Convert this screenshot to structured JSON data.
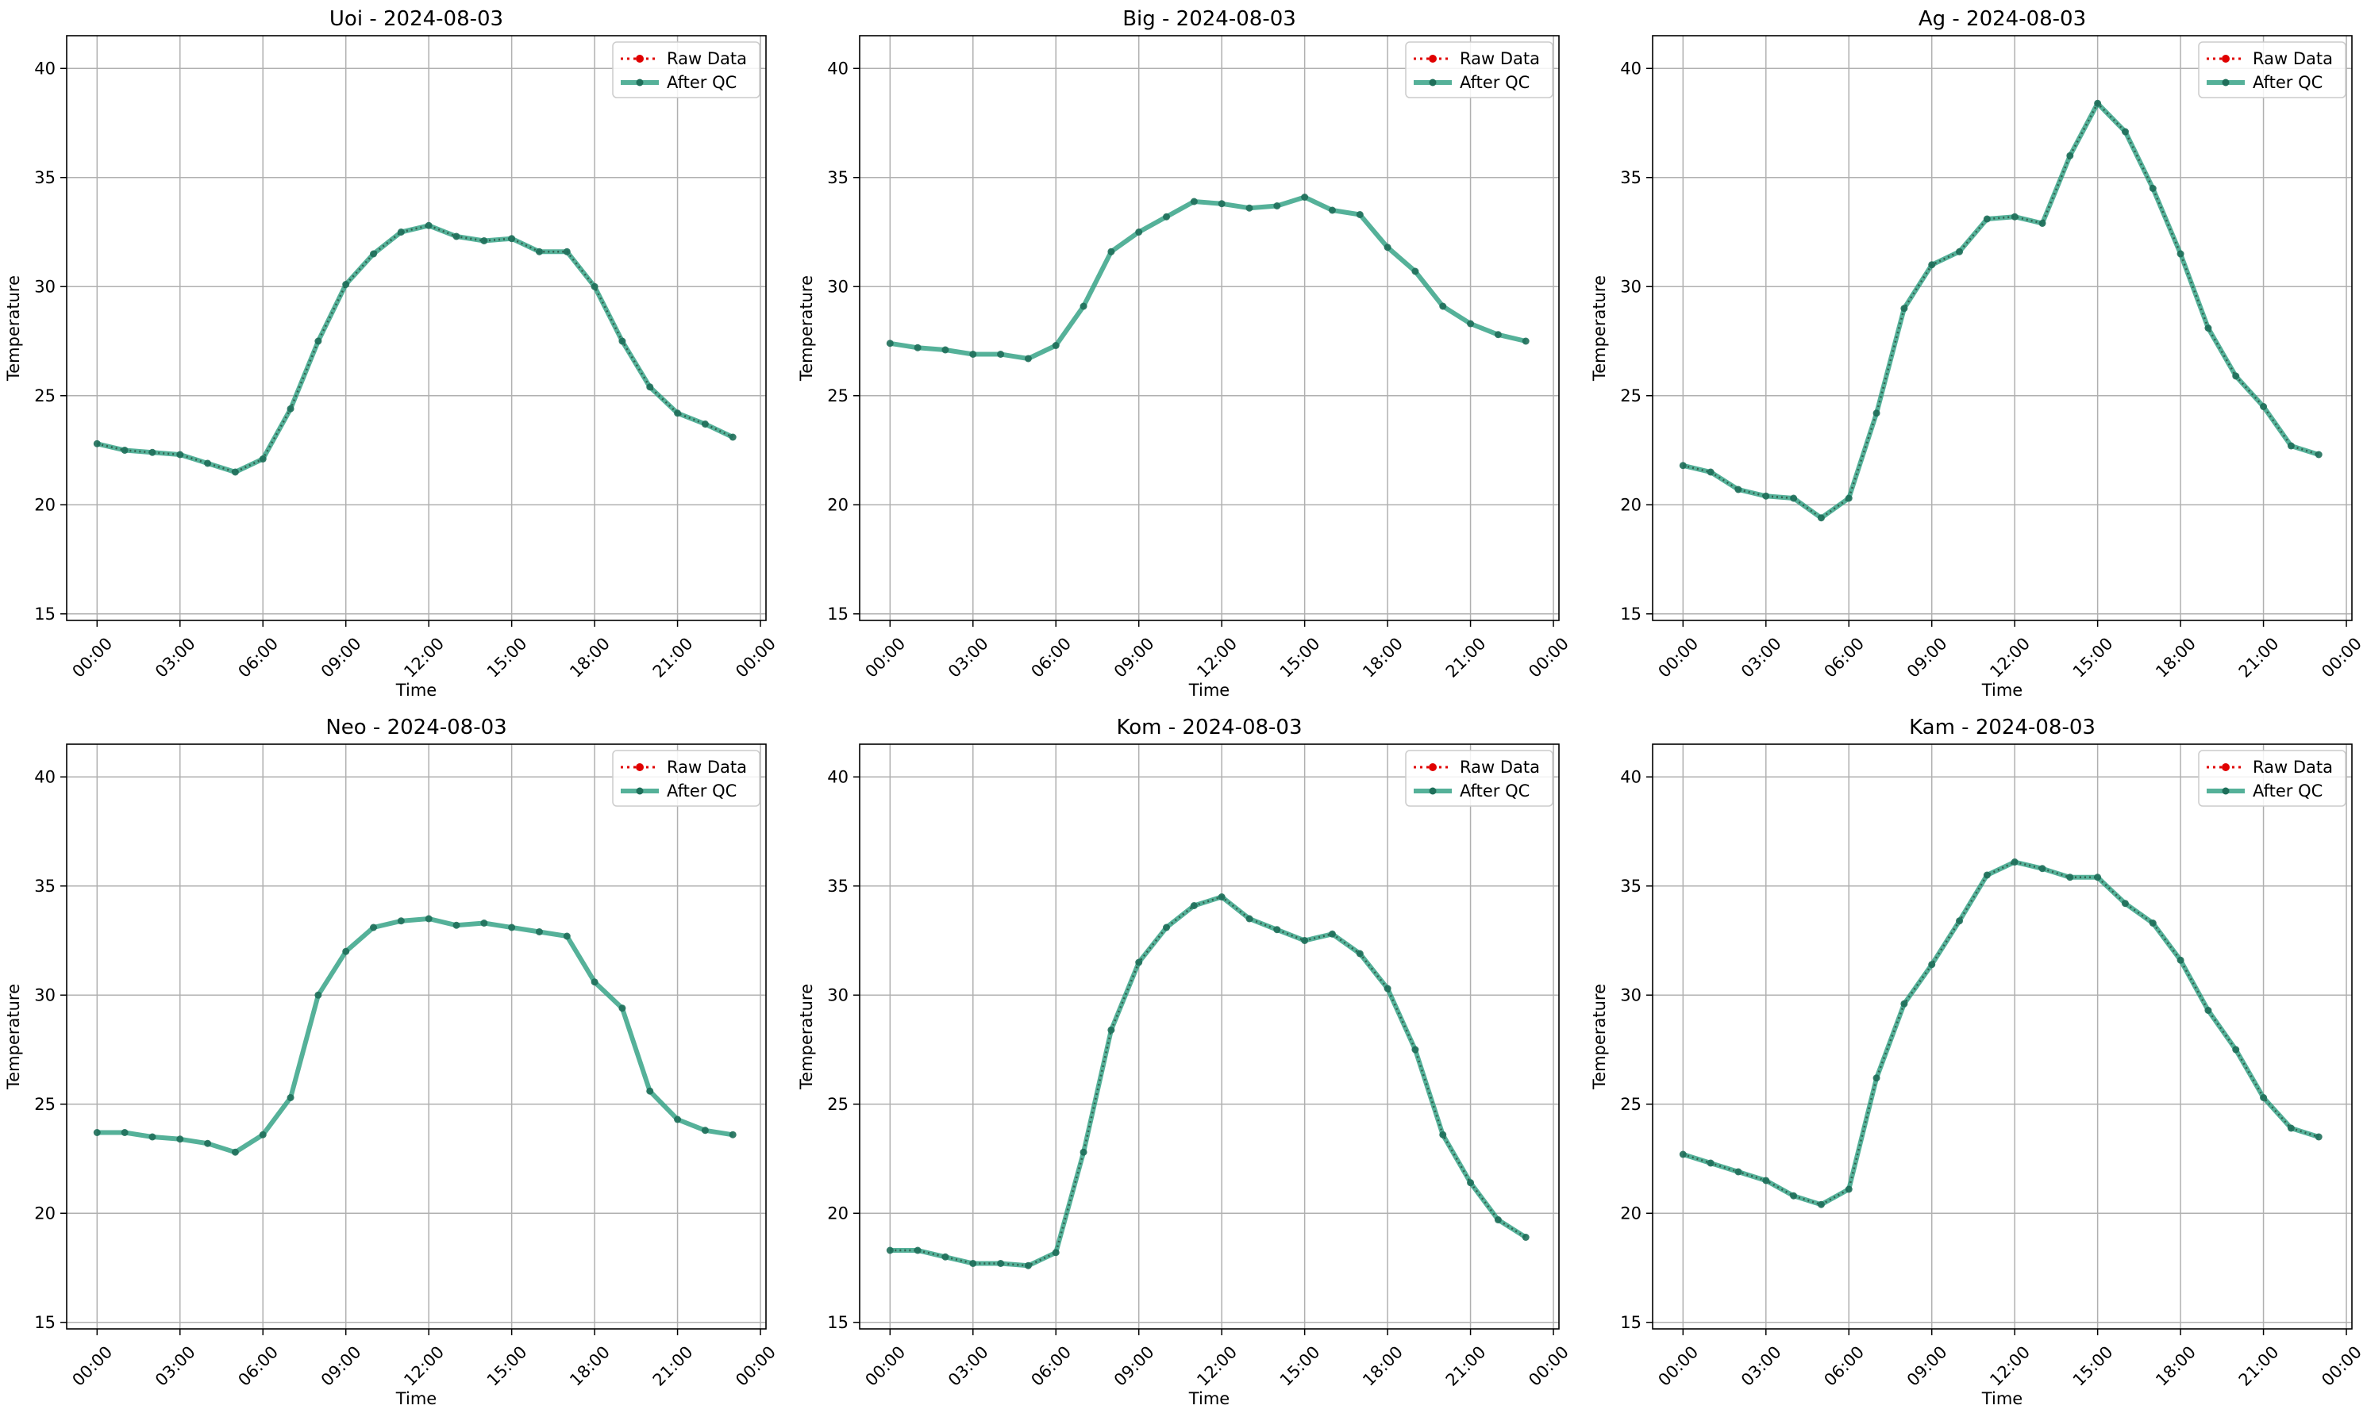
{
  "figure": {
    "background": "#ffffff"
  },
  "colors": {
    "raw": "#e00000",
    "qc": "#2a9d7f",
    "grid": "#b0b0b0",
    "marker": "#1f6f5a"
  },
  "legend": {
    "raw_label": "Raw Data",
    "qc_label": "After QC",
    "placement": "upper right"
  },
  "chart_data": [
    {
      "type": "line",
      "title": "Uoi - 2024-08-03",
      "xlabel": "Time",
      "ylabel": "Temperature",
      "xlim": [
        -1.1,
        24.2
      ],
      "ylim": [
        14.7,
        41.5
      ],
      "xtick_values": [
        0,
        3,
        6,
        9,
        12,
        15,
        18,
        21,
        24
      ],
      "xtick_labels": [
        "00:00",
        "03:00",
        "06:00",
        "09:00",
        "12:00",
        "15:00",
        "18:00",
        "21:00",
        "00:00"
      ],
      "ytick_values": [
        15,
        20,
        25,
        30,
        35,
        40
      ],
      "ytick_labels": [
        "15",
        "20",
        "25",
        "30",
        "35",
        "40"
      ],
      "grid": true,
      "raw_visible": true,
      "x": [
        0,
        1,
        2,
        3,
        4,
        5,
        6,
        7,
        8,
        9,
        10,
        11,
        12,
        13,
        14,
        15,
        16,
        17,
        18,
        19,
        20,
        21,
        22,
        23
      ],
      "series": [
        {
          "name": "Raw Data",
          "values": [
            22.8,
            22.5,
            22.4,
            22.3,
            21.9,
            21.5,
            22.1,
            24.4,
            27.5,
            30.1,
            31.5,
            32.5,
            32.8,
            32.3,
            32.1,
            32.2,
            31.6,
            31.6,
            30.0,
            27.5,
            25.4,
            24.2,
            23.7,
            23.1
          ]
        },
        {
          "name": "After QC",
          "values": [
            22.8,
            22.5,
            22.4,
            22.3,
            21.9,
            21.5,
            22.1,
            24.4,
            27.5,
            30.1,
            31.5,
            32.5,
            32.8,
            32.3,
            32.1,
            32.2,
            31.6,
            31.6,
            30.0,
            27.5,
            25.4,
            24.2,
            23.7,
            23.1
          ]
        }
      ]
    },
    {
      "type": "line",
      "title": "Big - 2024-08-03",
      "xlabel": "Time",
      "ylabel": "Temperature",
      "xlim": [
        -1.1,
        24.2
      ],
      "ylim": [
        14.7,
        41.5
      ],
      "xtick_values": [
        0,
        3,
        6,
        9,
        12,
        15,
        18,
        21,
        24
      ],
      "xtick_labels": [
        "00:00",
        "03:00",
        "06:00",
        "09:00",
        "12:00",
        "15:00",
        "18:00",
        "21:00",
        "00:00"
      ],
      "ytick_values": [
        15,
        20,
        25,
        30,
        35,
        40
      ],
      "ytick_labels": [
        "15",
        "20",
        "25",
        "30",
        "35",
        "40"
      ],
      "grid": true,
      "raw_visible": false,
      "x": [
        0,
        1,
        2,
        3,
        4,
        5,
        6,
        7,
        8,
        9,
        10,
        11,
        12,
        13,
        14,
        15,
        16,
        17,
        18,
        19,
        20,
        21,
        22,
        23
      ],
      "series": [
        {
          "name": "Raw Data",
          "values": [
            27.4,
            27.2,
            27.1,
            26.9,
            26.9,
            26.7,
            27.3,
            29.1,
            31.6,
            32.5,
            33.2,
            33.9,
            33.8,
            33.6,
            33.7,
            34.1,
            33.5,
            33.3,
            31.8,
            30.7,
            29.1,
            28.3,
            27.8,
            27.5
          ]
        },
        {
          "name": "After QC",
          "values": [
            27.4,
            27.2,
            27.1,
            26.9,
            26.9,
            26.7,
            27.3,
            29.1,
            31.6,
            32.5,
            33.2,
            33.9,
            33.8,
            33.6,
            33.7,
            34.1,
            33.5,
            33.3,
            31.8,
            30.7,
            29.1,
            28.3,
            27.8,
            27.5
          ]
        }
      ]
    },
    {
      "type": "line",
      "title": "Ag - 2024-08-03",
      "xlabel": "Time",
      "ylabel": "Temperature",
      "xlim": [
        -1.1,
        24.2
      ],
      "ylim": [
        14.7,
        41.5
      ],
      "xtick_values": [
        0,
        3,
        6,
        9,
        12,
        15,
        18,
        21,
        24
      ],
      "xtick_labels": [
        "00:00",
        "03:00",
        "06:00",
        "09:00",
        "12:00",
        "15:00",
        "18:00",
        "21:00",
        "00:00"
      ],
      "ytick_values": [
        15,
        20,
        25,
        30,
        35,
        40
      ],
      "ytick_labels": [
        "15",
        "20",
        "25",
        "30",
        "35",
        "40"
      ],
      "grid": true,
      "raw_visible": true,
      "x": [
        0,
        1,
        2,
        3,
        4,
        5,
        6,
        7,
        8,
        9,
        10,
        11,
        12,
        13,
        14,
        15,
        16,
        17,
        18,
        19,
        20,
        21,
        22,
        23
      ],
      "series": [
        {
          "name": "Raw Data",
          "values": [
            21.8,
            21.5,
            20.7,
            20.4,
            20.3,
            19.4,
            20.3,
            24.2,
            29.0,
            31.0,
            31.6,
            33.1,
            33.2,
            32.9,
            36.0,
            38.4,
            37.1,
            34.5,
            31.5,
            28.1,
            25.9,
            24.5,
            22.7,
            22.3
          ]
        },
        {
          "name": "After QC",
          "values": [
            21.8,
            21.5,
            20.7,
            20.4,
            20.3,
            19.4,
            20.3,
            24.2,
            29.0,
            31.0,
            31.6,
            33.1,
            33.2,
            32.9,
            36.0,
            38.4,
            37.1,
            34.5,
            31.5,
            28.1,
            25.9,
            24.5,
            22.7,
            22.3
          ]
        }
      ]
    },
    {
      "type": "line",
      "title": "Neo - 2024-08-03",
      "xlabel": "Time",
      "ylabel": "Temperature",
      "xlim": [
        -1.1,
        24.2
      ],
      "ylim": [
        14.7,
        41.5
      ],
      "xtick_values": [
        0,
        3,
        6,
        9,
        12,
        15,
        18,
        21,
        24
      ],
      "xtick_labels": [
        "00:00",
        "03:00",
        "06:00",
        "09:00",
        "12:00",
        "15:00",
        "18:00",
        "21:00",
        "00:00"
      ],
      "ytick_values": [
        15,
        20,
        25,
        30,
        35,
        40
      ],
      "ytick_labels": [
        "15",
        "20",
        "25",
        "30",
        "35",
        "40"
      ],
      "grid": true,
      "raw_visible": false,
      "x": [
        0,
        1,
        2,
        3,
        4,
        5,
        6,
        7,
        8,
        9,
        10,
        11,
        12,
        13,
        14,
        15,
        16,
        17,
        18,
        19,
        20,
        21,
        22,
        23
      ],
      "series": [
        {
          "name": "Raw Data",
          "values": [
            23.7,
            23.7,
            23.5,
            23.4,
            23.2,
            22.8,
            23.6,
            25.3,
            30.0,
            32.0,
            33.1,
            33.4,
            33.5,
            33.2,
            33.3,
            33.1,
            32.9,
            32.7,
            30.6,
            29.4,
            25.6,
            24.3,
            23.8,
            23.6
          ]
        },
        {
          "name": "After QC",
          "values": [
            23.7,
            23.7,
            23.5,
            23.4,
            23.2,
            22.8,
            23.6,
            25.3,
            30.0,
            32.0,
            33.1,
            33.4,
            33.5,
            33.2,
            33.3,
            33.1,
            32.9,
            32.7,
            30.6,
            29.4,
            25.6,
            24.3,
            23.8,
            23.6
          ]
        }
      ]
    },
    {
      "type": "line",
      "title": "Kom - 2024-08-03",
      "xlabel": "Time",
      "ylabel": "Temperature",
      "xlim": [
        -1.1,
        24.2
      ],
      "ylim": [
        14.7,
        41.5
      ],
      "xtick_values": [
        0,
        3,
        6,
        9,
        12,
        15,
        18,
        21,
        24
      ],
      "xtick_labels": [
        "00:00",
        "03:00",
        "06:00",
        "09:00",
        "12:00",
        "15:00",
        "18:00",
        "21:00",
        "00:00"
      ],
      "ytick_values": [
        15,
        20,
        25,
        30,
        35,
        40
      ],
      "ytick_labels": [
        "15",
        "20",
        "25",
        "30",
        "35",
        "40"
      ],
      "grid": true,
      "raw_visible": true,
      "x": [
        0,
        1,
        2,
        3,
        4,
        5,
        6,
        7,
        8,
        9,
        10,
        11,
        12,
        13,
        14,
        15,
        16,
        17,
        18,
        19,
        20,
        21,
        22,
        23
      ],
      "series": [
        {
          "name": "Raw Data",
          "values": [
            18.3,
            18.3,
            18.0,
            17.7,
            17.7,
            17.6,
            18.2,
            22.8,
            28.4,
            31.5,
            33.1,
            34.1,
            34.5,
            33.5,
            33.0,
            32.5,
            32.8,
            31.9,
            30.3,
            27.5,
            23.6,
            21.4,
            19.7,
            18.9
          ]
        },
        {
          "name": "After QC",
          "values": [
            18.3,
            18.3,
            18.0,
            17.7,
            17.7,
            17.6,
            18.2,
            22.8,
            28.4,
            31.5,
            33.1,
            34.1,
            34.5,
            33.5,
            33.0,
            32.5,
            32.8,
            31.9,
            30.3,
            27.5,
            23.6,
            21.4,
            19.7,
            18.9
          ]
        }
      ]
    },
    {
      "type": "line",
      "title": "Kam - 2024-08-03",
      "xlabel": "Time",
      "ylabel": "Temperature",
      "xlim": [
        -1.1,
        24.2
      ],
      "ylim": [
        14.7,
        41.5
      ],
      "xtick_values": [
        0,
        3,
        6,
        9,
        12,
        15,
        18,
        21,
        24
      ],
      "xtick_labels": [
        "00:00",
        "03:00",
        "06:00",
        "09:00",
        "12:00",
        "15:00",
        "18:00",
        "21:00",
        "00:00"
      ],
      "ytick_values": [
        15,
        20,
        25,
        30,
        35,
        40
      ],
      "ytick_labels": [
        "15",
        "20",
        "25",
        "30",
        "35",
        "40"
      ],
      "grid": true,
      "raw_visible": true,
      "x": [
        0,
        1,
        2,
        3,
        4,
        5,
        6,
        7,
        8,
        9,
        10,
        11,
        12,
        13,
        14,
        15,
        16,
        17,
        18,
        19,
        20,
        21,
        22,
        23
      ],
      "series": [
        {
          "name": "Raw Data",
          "values": [
            22.7,
            22.3,
            21.9,
            21.5,
            20.8,
            20.4,
            21.1,
            26.2,
            29.6,
            31.4,
            33.4,
            35.5,
            36.1,
            35.8,
            35.4,
            35.4,
            34.2,
            33.3,
            31.6,
            29.3,
            27.5,
            25.3,
            23.9,
            23.5
          ]
        },
        {
          "name": "After QC",
          "values": [
            22.7,
            22.3,
            21.9,
            21.5,
            20.8,
            20.4,
            21.1,
            26.2,
            29.6,
            31.4,
            33.4,
            35.5,
            36.1,
            35.8,
            35.4,
            35.4,
            34.2,
            33.3,
            31.6,
            29.3,
            27.5,
            25.3,
            23.9,
            23.5
          ]
        }
      ]
    }
  ]
}
